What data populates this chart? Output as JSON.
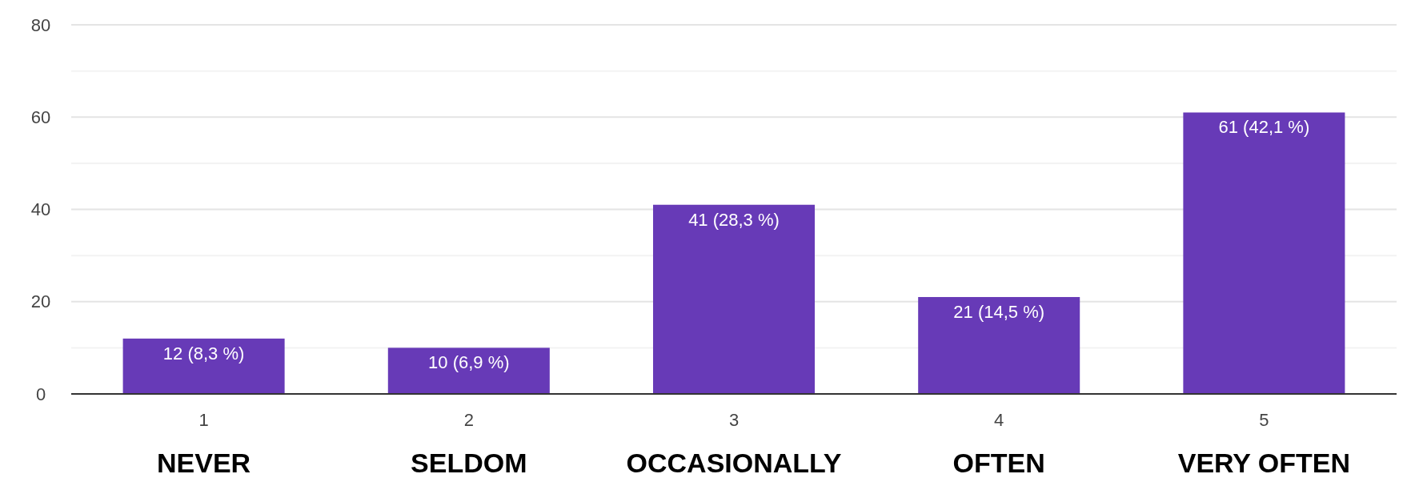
{
  "chart_data": {
    "type": "bar",
    "categories": [
      "1",
      "2",
      "3",
      "4",
      "5"
    ],
    "values": [
      12,
      10,
      41,
      21,
      61
    ],
    "value_labels": [
      "12 (8,3 %)",
      "10 (6,9 %)",
      "41 (28,3 %)",
      "21 (14,5 %)",
      "61 (42,1 %)"
    ],
    "color": "#673ab7",
    "ylim": [
      0,
      80
    ],
    "yticks": [
      0,
      {
        "value": 10,
        "label": null
      },
      20,
      {
        "value": 30,
        "label": null
      },
      40,
      {
        "value": 50,
        "label": null
      },
      60,
      {
        "value": 70,
        "label": null
      },
      80
    ],
    "grid": "y",
    "annotations": [
      "NEVER",
      "SELDOM",
      "OCCASIONALLY",
      "OFTEN",
      "VERY OFTEN"
    ]
  }
}
